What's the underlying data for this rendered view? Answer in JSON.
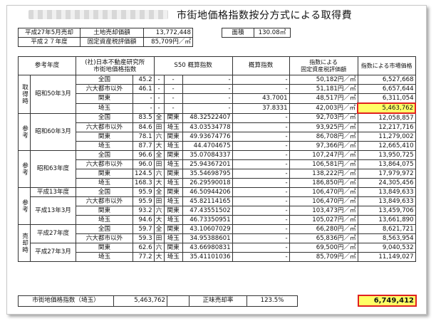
{
  "title": "市街地価格指数按分方式による取得費",
  "top_table": {
    "sale_label": "平成27年5月売却",
    "land_price_label": "土地売却価額",
    "land_price": "13,772,448",
    "area_label": "面積",
    "area": "130.08㎡",
    "year_label": "平成２７年度",
    "tax_value_label": "固定資産税評価額",
    "tax_value": "85,709円／㎡"
  },
  "headers": {
    "year": "参考年度",
    "index_line1": "(社)日本不動産研究所",
    "index_line2": "市街地価格指数",
    "s50": "S50 概算指数",
    "estimate": "概算指数",
    "tax_line1": "指数による",
    "tax_line2": "固定資産税評価額",
    "market": "指数による市場価格"
  },
  "groups": [
    {
      "side": "取得時",
      "rows": [
        {
          "period": "昭和50年3月",
          "region": "全国",
          "index": "45.2",
          "k1": "-",
          "k2": "-",
          "s50": "-",
          "est": "-",
          "tax": "50,182円／㎡",
          "market": "6,527,668"
        },
        {
          "region": "六大都市以外",
          "index": "46.1",
          "k1": "-",
          "k2": "-",
          "s50": "-",
          "est": "-",
          "tax": "51,181円／㎡",
          "market": "6,657,644"
        },
        {
          "region": "関東",
          "index": "-",
          "k1": "-",
          "k2": "-",
          "s50": "-",
          "est": "43.7001",
          "tax": "48,517円／㎡",
          "market": "6,311,054"
        },
        {
          "region": "埼玉",
          "index": "-",
          "k1": "-",
          "k2": "-",
          "s50": "-",
          "est": "37.8331",
          "tax": "42,003円／㎡",
          "market": "5,463,762",
          "hl": true
        }
      ]
    },
    {
      "side": "参考",
      "rows": [
        {
          "period": "昭和60年3月",
          "region": "全国",
          "index": "83.5",
          "k1": "全",
          "k2": "関東",
          "s50": "48.32522407",
          "est": "-",
          "tax": "92,703円／㎡",
          "market": "12,058,857"
        },
        {
          "region": "六大都市以外",
          "index": "84.6",
          "k1": "田",
          "k2": "埼玉",
          "s50": "43.03534778",
          "est": "-",
          "tax": "93,925円／㎡",
          "market": "12,217,716"
        },
        {
          "region": "関東",
          "index": "78.1",
          "k1": "六",
          "k2": "関東",
          "s50": "49.93674776",
          "est": "-",
          "tax": "86,708円／㎡",
          "market": "11,279,002"
        },
        {
          "region": "埼玉",
          "index": "87.7",
          "k1": "大",
          "k2": "埼玉",
          "s50": "44.4704675",
          "est": "-",
          "tax": "97,366円／㎡",
          "market": "12,665,410"
        }
      ]
    },
    {
      "side": "参考",
      "rows": [
        {
          "period": "昭和63年度",
          "region": "全国",
          "index": "96.6",
          "k1": "全",
          "k2": "関東",
          "s50": "35.07084337",
          "est": "-",
          "tax": "107,247円／㎡",
          "market": "13,950,725"
        },
        {
          "region": "六大都市以外",
          "index": "96.0",
          "k1": "田",
          "k2": "埼玉",
          "s50": "25.94367201",
          "est": "-",
          "tax": "106,581円／㎡",
          "market": "13,864,075"
        },
        {
          "region": "関東",
          "index": "124.5",
          "k1": "六",
          "k2": "関東",
          "s50": "35.54698795",
          "est": "-",
          "tax": "138,222円／㎡",
          "market": "17,979,972"
        },
        {
          "region": "埼玉",
          "index": "168.3",
          "k1": "大",
          "k2": "埼玉",
          "s50": "26.29590018",
          "est": "-",
          "tax": "186,850円／㎡",
          "market": "24,305,456"
        }
      ]
    },
    {
      "side": "参考",
      "rows": [
        {
          "period": "平成13年度",
          "region": "全国",
          "index": "95.9",
          "k1": "全",
          "k2": "関東",
          "s50": "46.50944206",
          "est": "-",
          "tax": "106,470円／㎡",
          "market": "13,849,633"
        },
        {
          "period": "平成13年3月",
          "region": "六大都市以外",
          "index": "95.9",
          "k1": "田",
          "k2": "埼玉",
          "s50": "45.82114165",
          "est": "-",
          "tax": "106,470円／㎡",
          "market": "13,849,633"
        },
        {
          "region": "関東",
          "index": "93.2",
          "k1": "六",
          "k2": "関東",
          "s50": "47.43551502",
          "est": "-",
          "tax": "103,473円／㎡",
          "market": "13,459,706"
        },
        {
          "region": "埼玉",
          "index": "94.6",
          "k1": "大",
          "k2": "埼玉",
          "s50": "46.73350951",
          "est": "-",
          "tax": "105,027円／㎡",
          "market": "13,661,890"
        }
      ]
    },
    {
      "side": "売却時",
      "rows": [
        {
          "period": "平成27年度",
          "region": "全国",
          "index": "59.7",
          "k1": "全",
          "k2": "関東",
          "s50": "43.10607029",
          "est": "-",
          "tax": "66,280円／㎡",
          "market": "8,621,721"
        },
        {
          "region": "六大都市以外",
          "index": "59.3",
          "k1": "田",
          "k2": "埼玉",
          "s50": "34.95388601",
          "est": "-",
          "tax": "65,836円／㎡",
          "market": "8,563,954"
        },
        {
          "period": "平成27年3月",
          "region": "関東",
          "index": "62.6",
          "k1": "六",
          "k2": "関東",
          "s50": "43.66980831",
          "est": "-",
          "tax": "69,500円／㎡",
          "market": "9,040,532"
        },
        {
          "region": "埼玉",
          "index": "77.2",
          "k1": "大",
          "k2": "埼玉",
          "s50": "35.41101036",
          "est": "-",
          "tax": "85,709円／㎡",
          "market": "11,149,027"
        }
      ]
    }
  ],
  "bottom": {
    "label": "市街地価格指数（埼玉）",
    "value": "5,463,762",
    "rate_label": "正味売却率",
    "rate": "123.5%",
    "result": "6,749,412"
  }
}
